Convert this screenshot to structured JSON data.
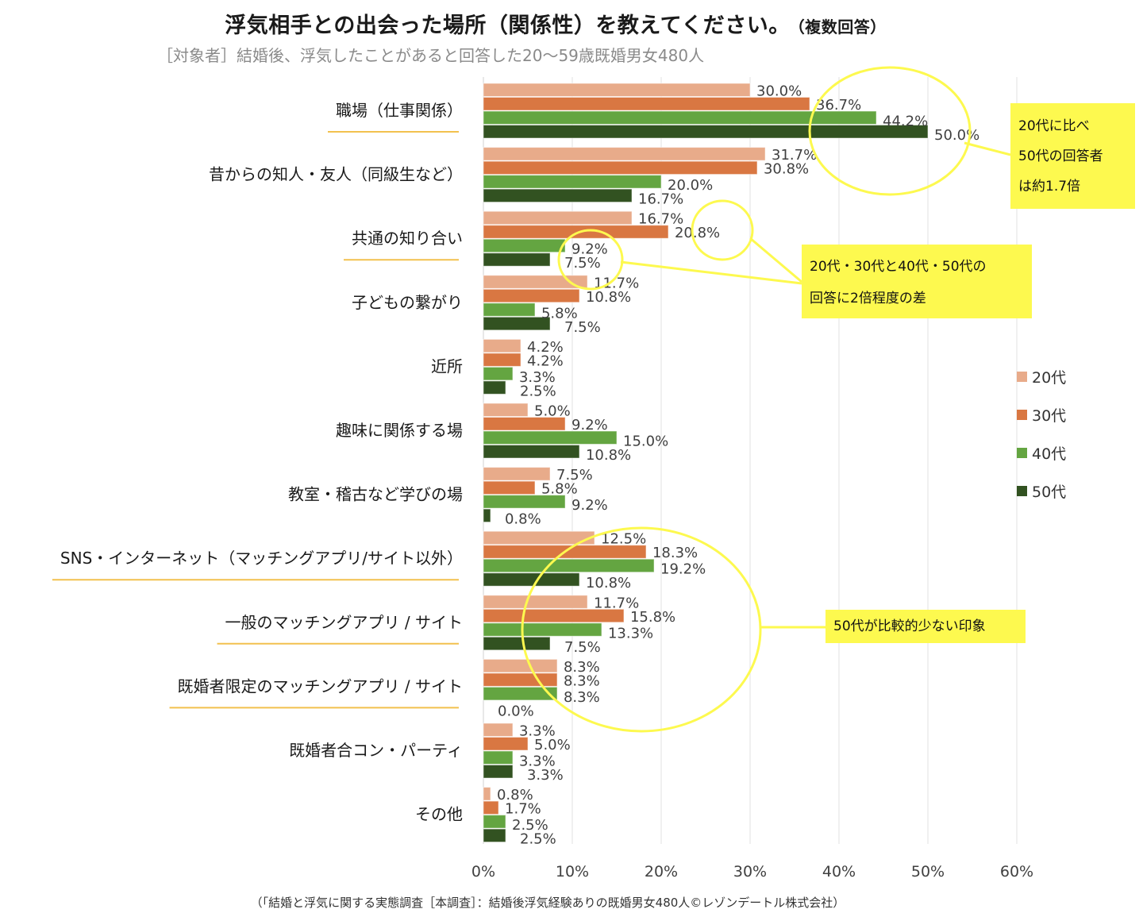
{
  "title": {
    "main": "浮気相手との出会った場所（関係性）を教えてください。",
    "suffix": "（複数回答）"
  },
  "subtitle": "［対象者］結婚後、浮気したことがあると回答した20～59歳既婚男女480人",
  "footer": "（「結婚と浮気に関する実態調査［本調査］：結婚後浮気経験ありの既婚男女480人©レゾンデートル株式会社）",
  "callouts": [
    {
      "lines": [
        "20代に比べ",
        "50代の回答者",
        "は約1.7倍"
      ]
    },
    {
      "lines": [
        "20代・30代と40代・50代の",
        "回答に2倍程度の差"
      ]
    },
    {
      "lines": [
        "50代が比較的少ない印象"
      ]
    }
  ],
  "colors": {
    "s20": "#e8ab8a",
    "s30": "#d97742",
    "s40": "#64a541",
    "s50": "#325221",
    "highlight": "#fdf94f",
    "underline": "#f2c14e",
    "grid": "#e2e2e2",
    "leader": "#bdbdbd"
  },
  "chart_data": {
    "type": "bar",
    "orientation": "horizontal",
    "title": "浮気相手との出会った場所（関係性）を教えてください。（複数回答）",
    "xlabel": "",
    "ylabel": "",
    "xlim": [
      0,
      60
    ],
    "x_ticks": [
      "0%",
      "10%",
      "20%",
      "30%",
      "40%",
      "50%",
      "60%"
    ],
    "grid": true,
    "legend_position": "right",
    "categories": [
      "職場（仕事関係）",
      "昔からの知人・友人（同級生など）",
      "共通の知り合い",
      "子どもの繋がり",
      "近所",
      "趣味に関係する場",
      "教室・稽古など学びの場",
      "SNS・インターネット（マッチングアプリ/サイト以外）",
      "一般のマッチングアプリ / サイト",
      "既婚者限定のマッチングアプリ / サイト",
      "既婚者合コン・パーティ",
      "その他"
    ],
    "underlined_categories": [
      0,
      2,
      7,
      8,
      9
    ],
    "series": [
      {
        "name": "20代",
        "values": [
          30.0,
          31.7,
          16.7,
          11.7,
          4.2,
          5.0,
          7.5,
          12.5,
          11.7,
          8.3,
          3.3,
          0.8
        ]
      },
      {
        "name": "30代",
        "values": [
          36.7,
          30.8,
          20.8,
          10.8,
          4.2,
          9.2,
          5.8,
          18.3,
          15.8,
          8.3,
          5.0,
          1.7
        ]
      },
      {
        "name": "40代",
        "values": [
          44.2,
          20.0,
          9.2,
          5.8,
          3.3,
          15.0,
          9.2,
          19.2,
          13.3,
          8.3,
          3.3,
          2.5
        ]
      },
      {
        "name": "50代",
        "values": [
          50.0,
          16.7,
          7.5,
          7.5,
          2.5,
          10.8,
          0.8,
          10.8,
          7.5,
          0.0,
          3.3,
          2.5
        ]
      }
    ],
    "value_format": "{v}%"
  }
}
